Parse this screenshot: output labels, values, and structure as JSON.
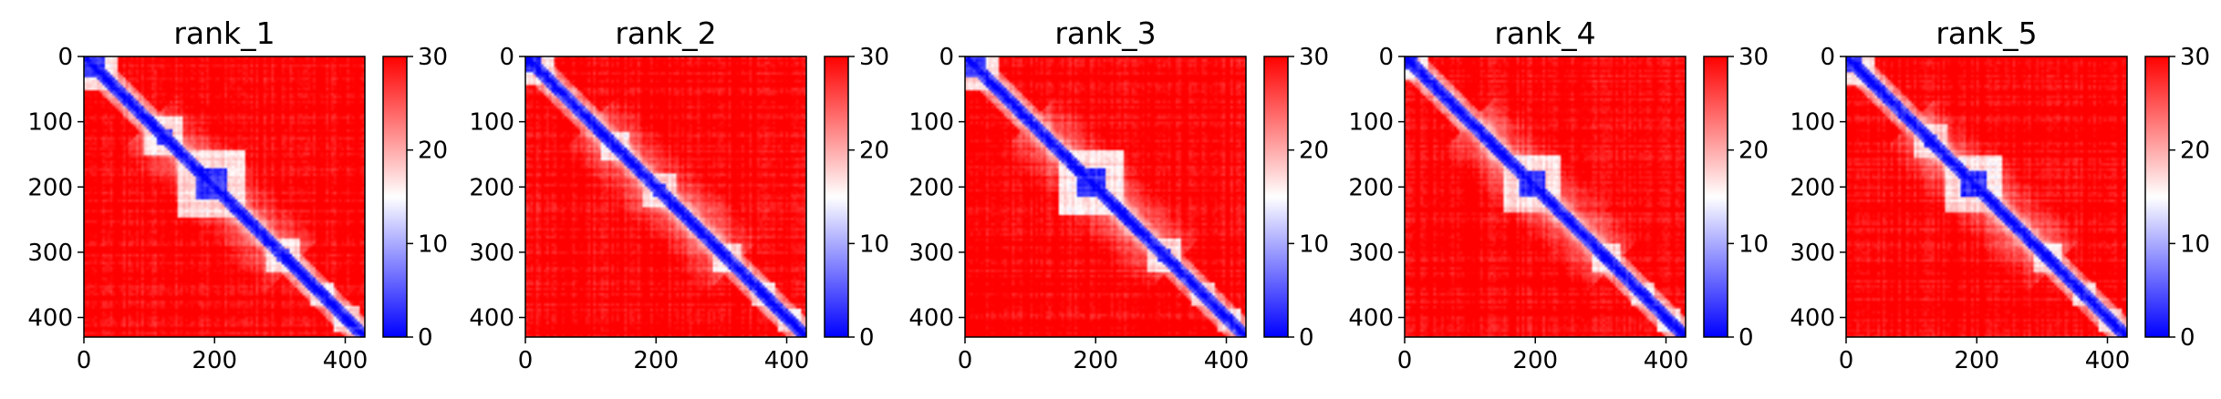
{
  "chart_data": [
    {
      "type": "heatmap",
      "title": "rank_1",
      "x_ticks": [
        "0",
        "200",
        "400"
      ],
      "y_ticks": [
        "0",
        "100",
        "200",
        "300",
        "400"
      ],
      "xlim": [
        0,
        430
      ],
      "ylim": [
        430,
        0
      ],
      "colorbar": {
        "ticks": [
          "0",
          "10",
          "20",
          "30"
        ],
        "range": [
          0,
          30
        ],
        "colormap": [
          "#0000ff",
          "#ffffff",
          "#ff0000"
        ]
      },
      "blue_domains": [
        [
          0,
          30
        ],
        [
          110,
          135
        ],
        [
          170,
          220
        ],
        [
          295,
          315
        ],
        [
          360,
          370
        ],
        [
          395,
          410
        ]
      ],
      "seed": 11
    },
    {
      "type": "heatmap",
      "title": "rank_2",
      "x_ticks": [
        "0",
        "200",
        "400"
      ],
      "y_ticks": [
        "0",
        "100",
        "200",
        "300",
        "400"
      ],
      "xlim": [
        0,
        430
      ],
      "ylim": [
        430,
        0
      ],
      "colorbar": {
        "ticks": [
          "0",
          "10",
          "20",
          "30"
        ],
        "range": [
          0,
          30
        ],
        "colormap": [
          "#0000ff",
          "#ffffff",
          "#ff0000"
        ]
      },
      "blue_domains": [
        [
          0,
          25
        ],
        [
          130,
          145
        ],
        [
          195,
          215
        ],
        [
          300,
          315
        ],
        [
          360,
          370
        ],
        [
          400,
          410
        ]
      ],
      "seed": 23
    },
    {
      "type": "heatmap",
      "title": "rank_3",
      "x_ticks": [
        "0",
        "200",
        "400"
      ],
      "y_ticks": [
        "0",
        "100",
        "200",
        "300",
        "400"
      ],
      "xlim": [
        0,
        430
      ],
      "ylim": [
        430,
        0
      ],
      "colorbar": {
        "ticks": [
          "0",
          "10",
          "20",
          "30"
        ],
        "range": [
          0,
          30
        ],
        "colormap": [
          "#0000ff",
          "#ffffff",
          "#ff0000"
        ]
      },
      "blue_domains": [
        [
          0,
          30
        ],
        [
          170,
          215
        ],
        [
          295,
          315
        ],
        [
          360,
          370
        ],
        [
          400,
          410
        ]
      ],
      "seed": 37
    },
    {
      "type": "heatmap",
      "title": "rank_4",
      "x_ticks": [
        "0",
        "200",
        "400"
      ],
      "y_ticks": [
        "0",
        "100",
        "200",
        "300",
        "400"
      ],
      "xlim": [
        0,
        430
      ],
      "ylim": [
        430,
        0
      ],
      "colorbar": {
        "ticks": [
          "0",
          "10",
          "20",
          "30"
        ],
        "range": [
          0,
          30
        ],
        "colormap": [
          "#0000ff",
          "#ffffff",
          "#ff0000"
        ]
      },
      "blue_domains": [
        [
          0,
          20
        ],
        [
          175,
          215
        ],
        [
          300,
          315
        ],
        [
          360,
          370
        ],
        [
          400,
          410
        ]
      ],
      "seed": 51
    },
    {
      "type": "heatmap",
      "title": "rank_5",
      "x_ticks": [
        "0",
        "200",
        "400"
      ],
      "y_ticks": [
        "0",
        "100",
        "200",
        "300",
        "400"
      ],
      "xlim": [
        0,
        430
      ],
      "ylim": [
        430,
        0
      ],
      "colorbar": {
        "ticks": [
          "0",
          "10",
          "20",
          "30"
        ],
        "range": [
          0,
          30
        ],
        "colormap": [
          "#0000ff",
          "#ffffff",
          "#ff0000"
        ]
      },
      "blue_domains": [
        [
          0,
          25
        ],
        [
          120,
          140
        ],
        [
          175,
          215
        ],
        [
          300,
          315
        ],
        [
          360,
          370
        ],
        [
          400,
          410
        ]
      ],
      "seed": 67
    }
  ]
}
